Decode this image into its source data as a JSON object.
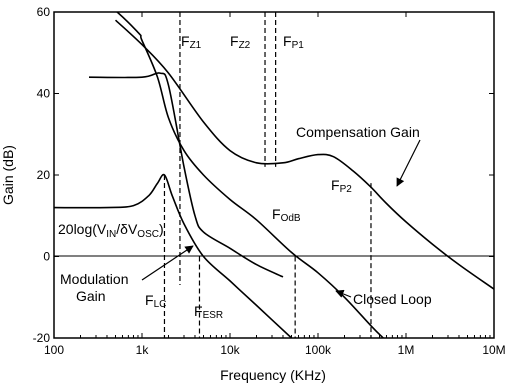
{
  "chart_data": {
    "type": "line",
    "title": "",
    "xlabel": "Frequency (KHz)",
    "ylabel": "Gain (dB)",
    "x_scale": "log",
    "xlim": [
      100,
      10000000
    ],
    "ylim": [
      -20,
      60
    ],
    "grid": false,
    "x_ticks": [
      "100",
      "1k",
      "10k",
      "100k",
      "1M",
      "10M"
    ],
    "y_ticks": [
      "-20",
      "0",
      "20",
      "40",
      "60"
    ],
    "series": [
      {
        "name": "Compensation Gain",
        "points": [
          [
            500,
            58
          ],
          [
            1000,
            52
          ],
          [
            2000,
            45
          ],
          [
            5000,
            33
          ],
          [
            10000,
            26
          ],
          [
            20000,
            23
          ],
          [
            40000,
            23
          ],
          [
            60000,
            24
          ],
          [
            100000,
            25
          ],
          [
            150000,
            24.5
          ],
          [
            250000,
            21
          ],
          [
            400000,
            17
          ],
          [
            600000,
            13
          ],
          [
            1000000,
            8.5
          ],
          [
            2000000,
            3
          ],
          [
            4000000,
            -2
          ],
          [
            10000000,
            -8
          ]
        ]
      },
      {
        "name": "Closed Loop",
        "points": [
          [
            100,
            70
          ],
          [
            400,
            62
          ],
          [
            900,
            55
          ],
          [
            1000,
            53
          ],
          [
            1500,
            44
          ],
          [
            2000,
            34
          ],
          [
            3000,
            26
          ],
          [
            5000,
            20
          ],
          [
            10000,
            14
          ],
          [
            20000,
            9
          ],
          [
            50000,
            1
          ],
          [
            100000,
            -4
          ],
          [
            200000,
            -10
          ],
          [
            400000,
            -17
          ],
          [
            550000,
            -20
          ]
        ]
      },
      {
        "name": "Modulation Gain",
        "points": [
          [
            100,
            12
          ],
          [
            400,
            12
          ],
          [
            800,
            12.5
          ],
          [
            1200,
            15
          ],
          [
            1500,
            18
          ],
          [
            1800,
            20
          ],
          [
            2200,
            15
          ],
          [
            3000,
            8
          ],
          [
            5000,
            0
          ],
          [
            10000,
            -6
          ],
          [
            20000,
            -12
          ],
          [
            50000,
            -20
          ]
        ]
      },
      {
        "name": "",
        "points": [
          [
            250,
            44
          ],
          [
            1000,
            44
          ],
          [
            1600,
            45
          ],
          [
            2000,
            42
          ],
          [
            3000,
            22
          ],
          [
            4000,
            10
          ],
          [
            5000,
            6
          ],
          [
            10000,
            2
          ],
          [
            20000,
            -2
          ],
          [
            40000,
            -5
          ]
        ]
      }
    ],
    "markers": [
      {
        "label": "FZ1",
        "x": 2700,
        "ymin": -7,
        "ymax": 60
      },
      {
        "label": "FZ2",
        "x": 25000,
        "ymin": 22,
        "ymax": 60
      },
      {
        "label": "FP1",
        "x": 33000,
        "ymin": 22,
        "ymax": 60
      },
      {
        "label": "FP2",
        "x": 400000,
        "ymin": -20,
        "ymax": 18
      },
      {
        "label": "FOdB",
        "x": 55000,
        "ymin": -20,
        "ymax": 0
      },
      {
        "label": "FLC",
        "x": 1800,
        "ymin": -20,
        "ymax": 20
      },
      {
        "label": "FESR",
        "x": 4500,
        "ymin": -20,
        "ymax": 0
      }
    ],
    "annotations": {
      "compensation": "Compensation Gain",
      "closed_loop": "Closed Loop",
      "modulation_1": "Modulation",
      "modulation_2": "Gain",
      "formula": "20log(VIN/δVOSC)",
      "fz1": "FZ1",
      "fz2": "FZ2",
      "fp1": "FP1",
      "fp2": "FP2",
      "fodb": "FOdB",
      "flc": "FLC",
      "fesr": "FESR"
    }
  }
}
